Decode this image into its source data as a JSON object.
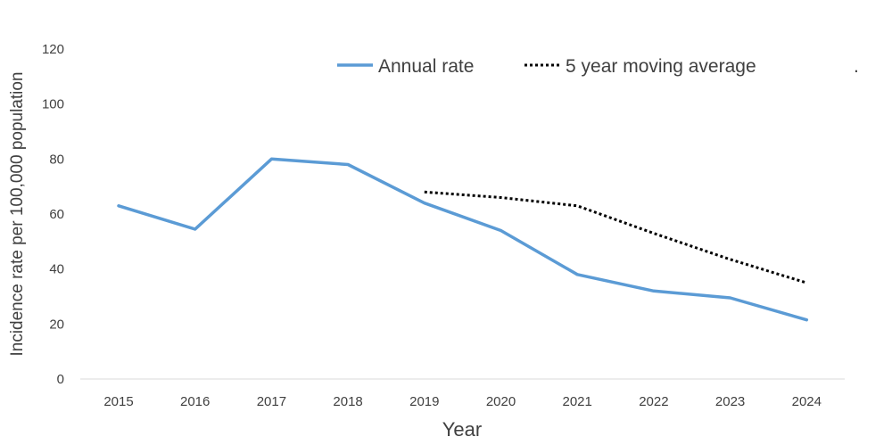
{
  "chart_data": {
    "type": "line",
    "xlabel": "Year",
    "ylabel": "Incidence rate per 100,000 population",
    "ylim": [
      0,
      120
    ],
    "yticks": [
      0,
      20,
      40,
      60,
      80,
      100,
      120
    ],
    "categories": [
      "2015",
      "2016",
      "2017",
      "2018",
      "2019",
      "2020",
      "2021",
      "2022",
      "2023",
      "2024"
    ],
    "series": [
      {
        "name": "Annual rate",
        "color": "#5B9BD5",
        "style": "solid",
        "values": [
          63,
          54.5,
          80,
          78,
          64,
          54,
          38,
          32,
          29.5,
          21.5
        ]
      },
      {
        "name": "5 year moving average",
        "color": "#000000",
        "style": "dotted",
        "values": [
          null,
          null,
          null,
          null,
          68,
          66,
          63,
          53,
          43.5,
          35
        ]
      }
    ],
    "legend_position": "top",
    "legend_note": ".",
    "grid": false
  }
}
